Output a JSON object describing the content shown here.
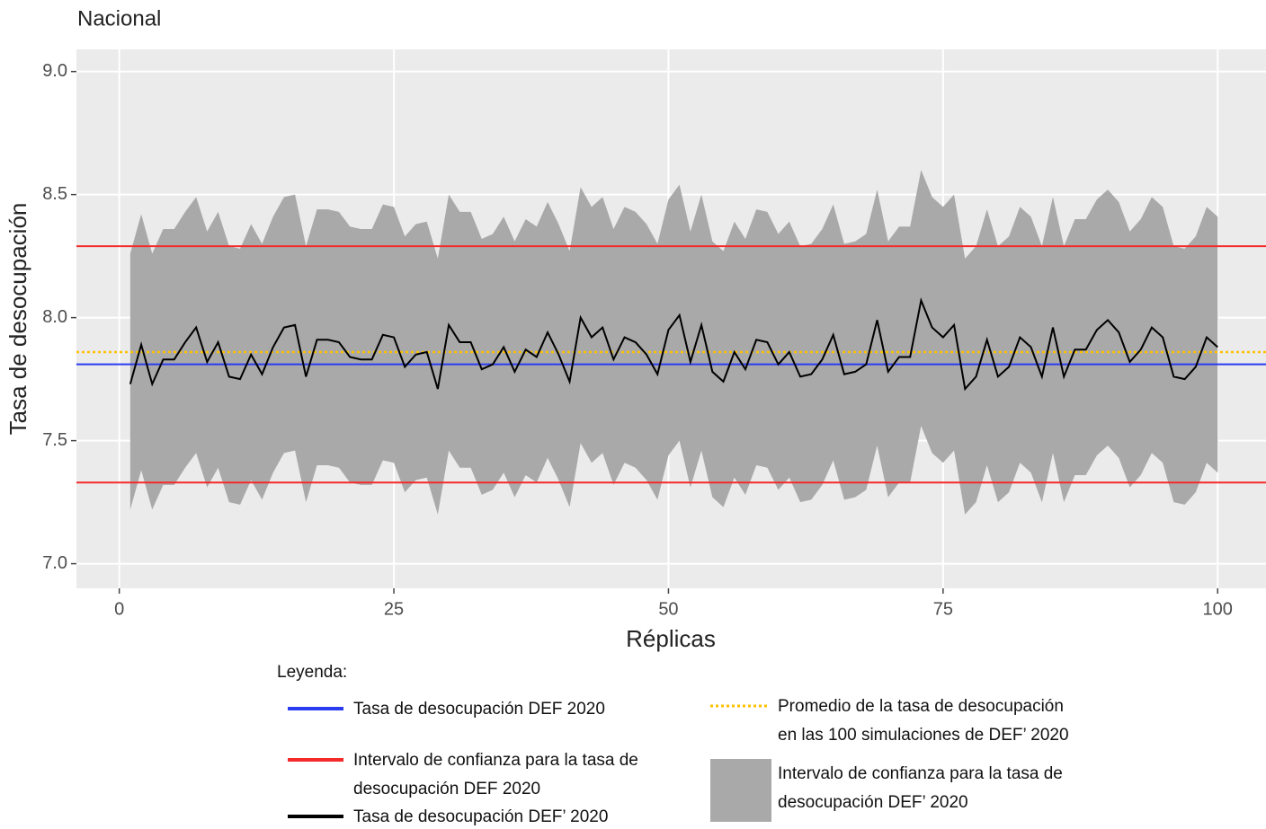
{
  "chart_data": {
    "type": "line",
    "title": "Nacional",
    "x_label": "Réplicas",
    "y_label": "Tasa de desocupación",
    "xlim": [
      -3.9,
      104.4
    ],
    "ylim": [
      6.9,
      9.09
    ],
    "xticks": [
      0,
      25,
      50,
      75,
      100
    ],
    "yticks": [
      {
        "value": 7,
        "label": "7.0"
      },
      {
        "value": 7.5,
        "label": "7.5"
      },
      {
        "value": 8,
        "label": "8.0"
      },
      {
        "value": 8.5,
        "label": "8.5"
      },
      {
        "value": 9,
        "label": "9.0"
      }
    ],
    "grid": true,
    "x": [
      1,
      2,
      3,
      4,
      5,
      6,
      7,
      8,
      9,
      10,
      11,
      12,
      13,
      14,
      15,
      16,
      17,
      18,
      19,
      20,
      21,
      22,
      23,
      24,
      25,
      26,
      27,
      28,
      29,
      30,
      31,
      32,
      33,
      34,
      35,
      36,
      37,
      38,
      39,
      40,
      41,
      42,
      43,
      44,
      45,
      46,
      47,
      48,
      49,
      50,
      51,
      52,
      53,
      54,
      55,
      56,
      57,
      58,
      59,
      60,
      61,
      62,
      63,
      64,
      65,
      66,
      67,
      68,
      69,
      70,
      71,
      72,
      73,
      74,
      75,
      76,
      77,
      78,
      79,
      80,
      81,
      82,
      83,
      84,
      85,
      86,
      87,
      88,
      89,
      90,
      91,
      92,
      93,
      94,
      95,
      96,
      97,
      98,
      99,
      100
    ],
    "band": {
      "name": [
        "Intervalo de confianza para la tasa de",
        "desocupación DEF’ 2020"
      ],
      "color": "#a9a9a9",
      "upper": [
        8.26,
        8.42,
        8.26,
        8.36,
        8.36,
        8.43,
        8.49,
        8.35,
        8.43,
        8.29,
        8.28,
        8.38,
        8.3,
        8.41,
        8.49,
        8.5,
        8.29,
        8.44,
        8.44,
        8.43,
        8.37,
        8.36,
        8.36,
        8.46,
        8.45,
        8.33,
        8.38,
        8.39,
        8.24,
        8.5,
        8.43,
        8.43,
        8.32,
        8.34,
        8.41,
        8.31,
        8.4,
        8.37,
        8.47,
        8.38,
        8.27,
        8.53,
        8.45,
        8.49,
        8.36,
        8.45,
        8.43,
        8.38,
        8.3,
        8.48,
        8.54,
        8.35,
        8.5,
        8.31,
        8.27,
        8.39,
        8.32,
        8.44,
        8.43,
        8.34,
        8.39,
        8.29,
        8.3,
        8.36,
        8.46,
        8.3,
        8.31,
        8.34,
        8.52,
        8.31,
        8.37,
        8.37,
        8.6,
        8.49,
        8.45,
        8.5,
        8.24,
        8.29,
        8.44,
        8.29,
        8.33,
        8.45,
        8.41,
        8.29,
        8.49,
        8.29,
        8.4,
        8.4,
        8.48,
        8.52,
        8.47,
        8.35,
        8.4,
        8.49,
        8.45,
        8.29,
        8.28,
        8.33,
        8.45,
        8.41
      ],
      "lower": [
        7.22,
        7.38,
        7.22,
        7.32,
        7.32,
        7.39,
        7.45,
        7.31,
        7.39,
        7.25,
        7.24,
        7.34,
        7.26,
        7.37,
        7.45,
        7.46,
        7.25,
        7.4,
        7.4,
        7.39,
        7.33,
        7.32,
        7.32,
        7.42,
        7.41,
        7.29,
        7.34,
        7.35,
        7.2,
        7.46,
        7.39,
        7.39,
        7.28,
        7.3,
        7.37,
        7.27,
        7.36,
        7.33,
        7.43,
        7.34,
        7.23,
        7.49,
        7.41,
        7.45,
        7.32,
        7.41,
        7.39,
        7.34,
        7.26,
        7.44,
        7.5,
        7.31,
        7.46,
        7.27,
        7.23,
        7.35,
        7.28,
        7.4,
        7.39,
        7.3,
        7.35,
        7.25,
        7.26,
        7.32,
        7.42,
        7.26,
        7.27,
        7.3,
        7.48,
        7.27,
        7.33,
        7.33,
        7.56,
        7.45,
        7.41,
        7.46,
        7.2,
        7.25,
        7.4,
        7.25,
        7.29,
        7.41,
        7.37,
        7.25,
        7.45,
        7.25,
        7.36,
        7.36,
        7.44,
        7.48,
        7.43,
        7.31,
        7.36,
        7.45,
        7.41,
        7.25,
        7.24,
        7.29,
        7.41,
        7.37
      ]
    },
    "series": [
      {
        "name": [
          "Tasa de desocupación DEF’ 2020"
        ],
        "color": "#000000",
        "values": [
          7.73,
          7.89,
          7.73,
          7.83,
          7.83,
          7.9,
          7.96,
          7.82,
          7.9,
          7.76,
          7.75,
          7.85,
          7.77,
          7.88,
          7.96,
          7.97,
          7.76,
          7.91,
          7.91,
          7.9,
          7.84,
          7.83,
          7.83,
          7.93,
          7.92,
          7.8,
          7.85,
          7.86,
          7.71,
          7.97,
          7.9,
          7.9,
          7.79,
          7.81,
          7.88,
          7.78,
          7.87,
          7.84,
          7.94,
          7.85,
          7.74,
          8.0,
          7.92,
          7.96,
          7.83,
          7.92,
          7.9,
          7.85,
          7.77,
          7.95,
          8.01,
          7.82,
          7.97,
          7.78,
          7.74,
          7.86,
          7.79,
          7.91,
          7.9,
          7.81,
          7.86,
          7.76,
          7.77,
          7.83,
          7.93,
          7.77,
          7.78,
          7.81,
          7.99,
          7.78,
          7.84,
          7.84,
          8.07,
          7.96,
          7.92,
          7.97,
          7.71,
          7.76,
          7.91,
          7.76,
          7.8,
          7.92,
          7.88,
          7.76,
          7.96,
          7.76,
          7.87,
          7.87,
          7.95,
          7.99,
          7.94,
          7.82,
          7.87,
          7.96,
          7.92,
          7.76,
          7.75,
          7.8,
          7.92,
          7.88
        ]
      }
    ],
    "reference_lines": [
      {
        "name": [
          "Tasa de desocupación DEF 2020"
        ],
        "color": "#2a3cf0",
        "dashed": false,
        "values": [
          7.81
        ]
      },
      {
        "name": [
          "Intervalo de confianza para la tasa de",
          "desocupación DEF 2020"
        ],
        "color": "#f42a2a",
        "dashed": false,
        "values": [
          7.33,
          8.29
        ]
      },
      {
        "name": [
          "Promedio de la tasa de desocupación",
          "en las 100 simulaciones de DEF’ 2020"
        ],
        "color": "#ffc000",
        "dashed": true,
        "values": [
          7.86
        ]
      }
    ],
    "legend": {
      "title": "Leyenda:"
    }
  }
}
